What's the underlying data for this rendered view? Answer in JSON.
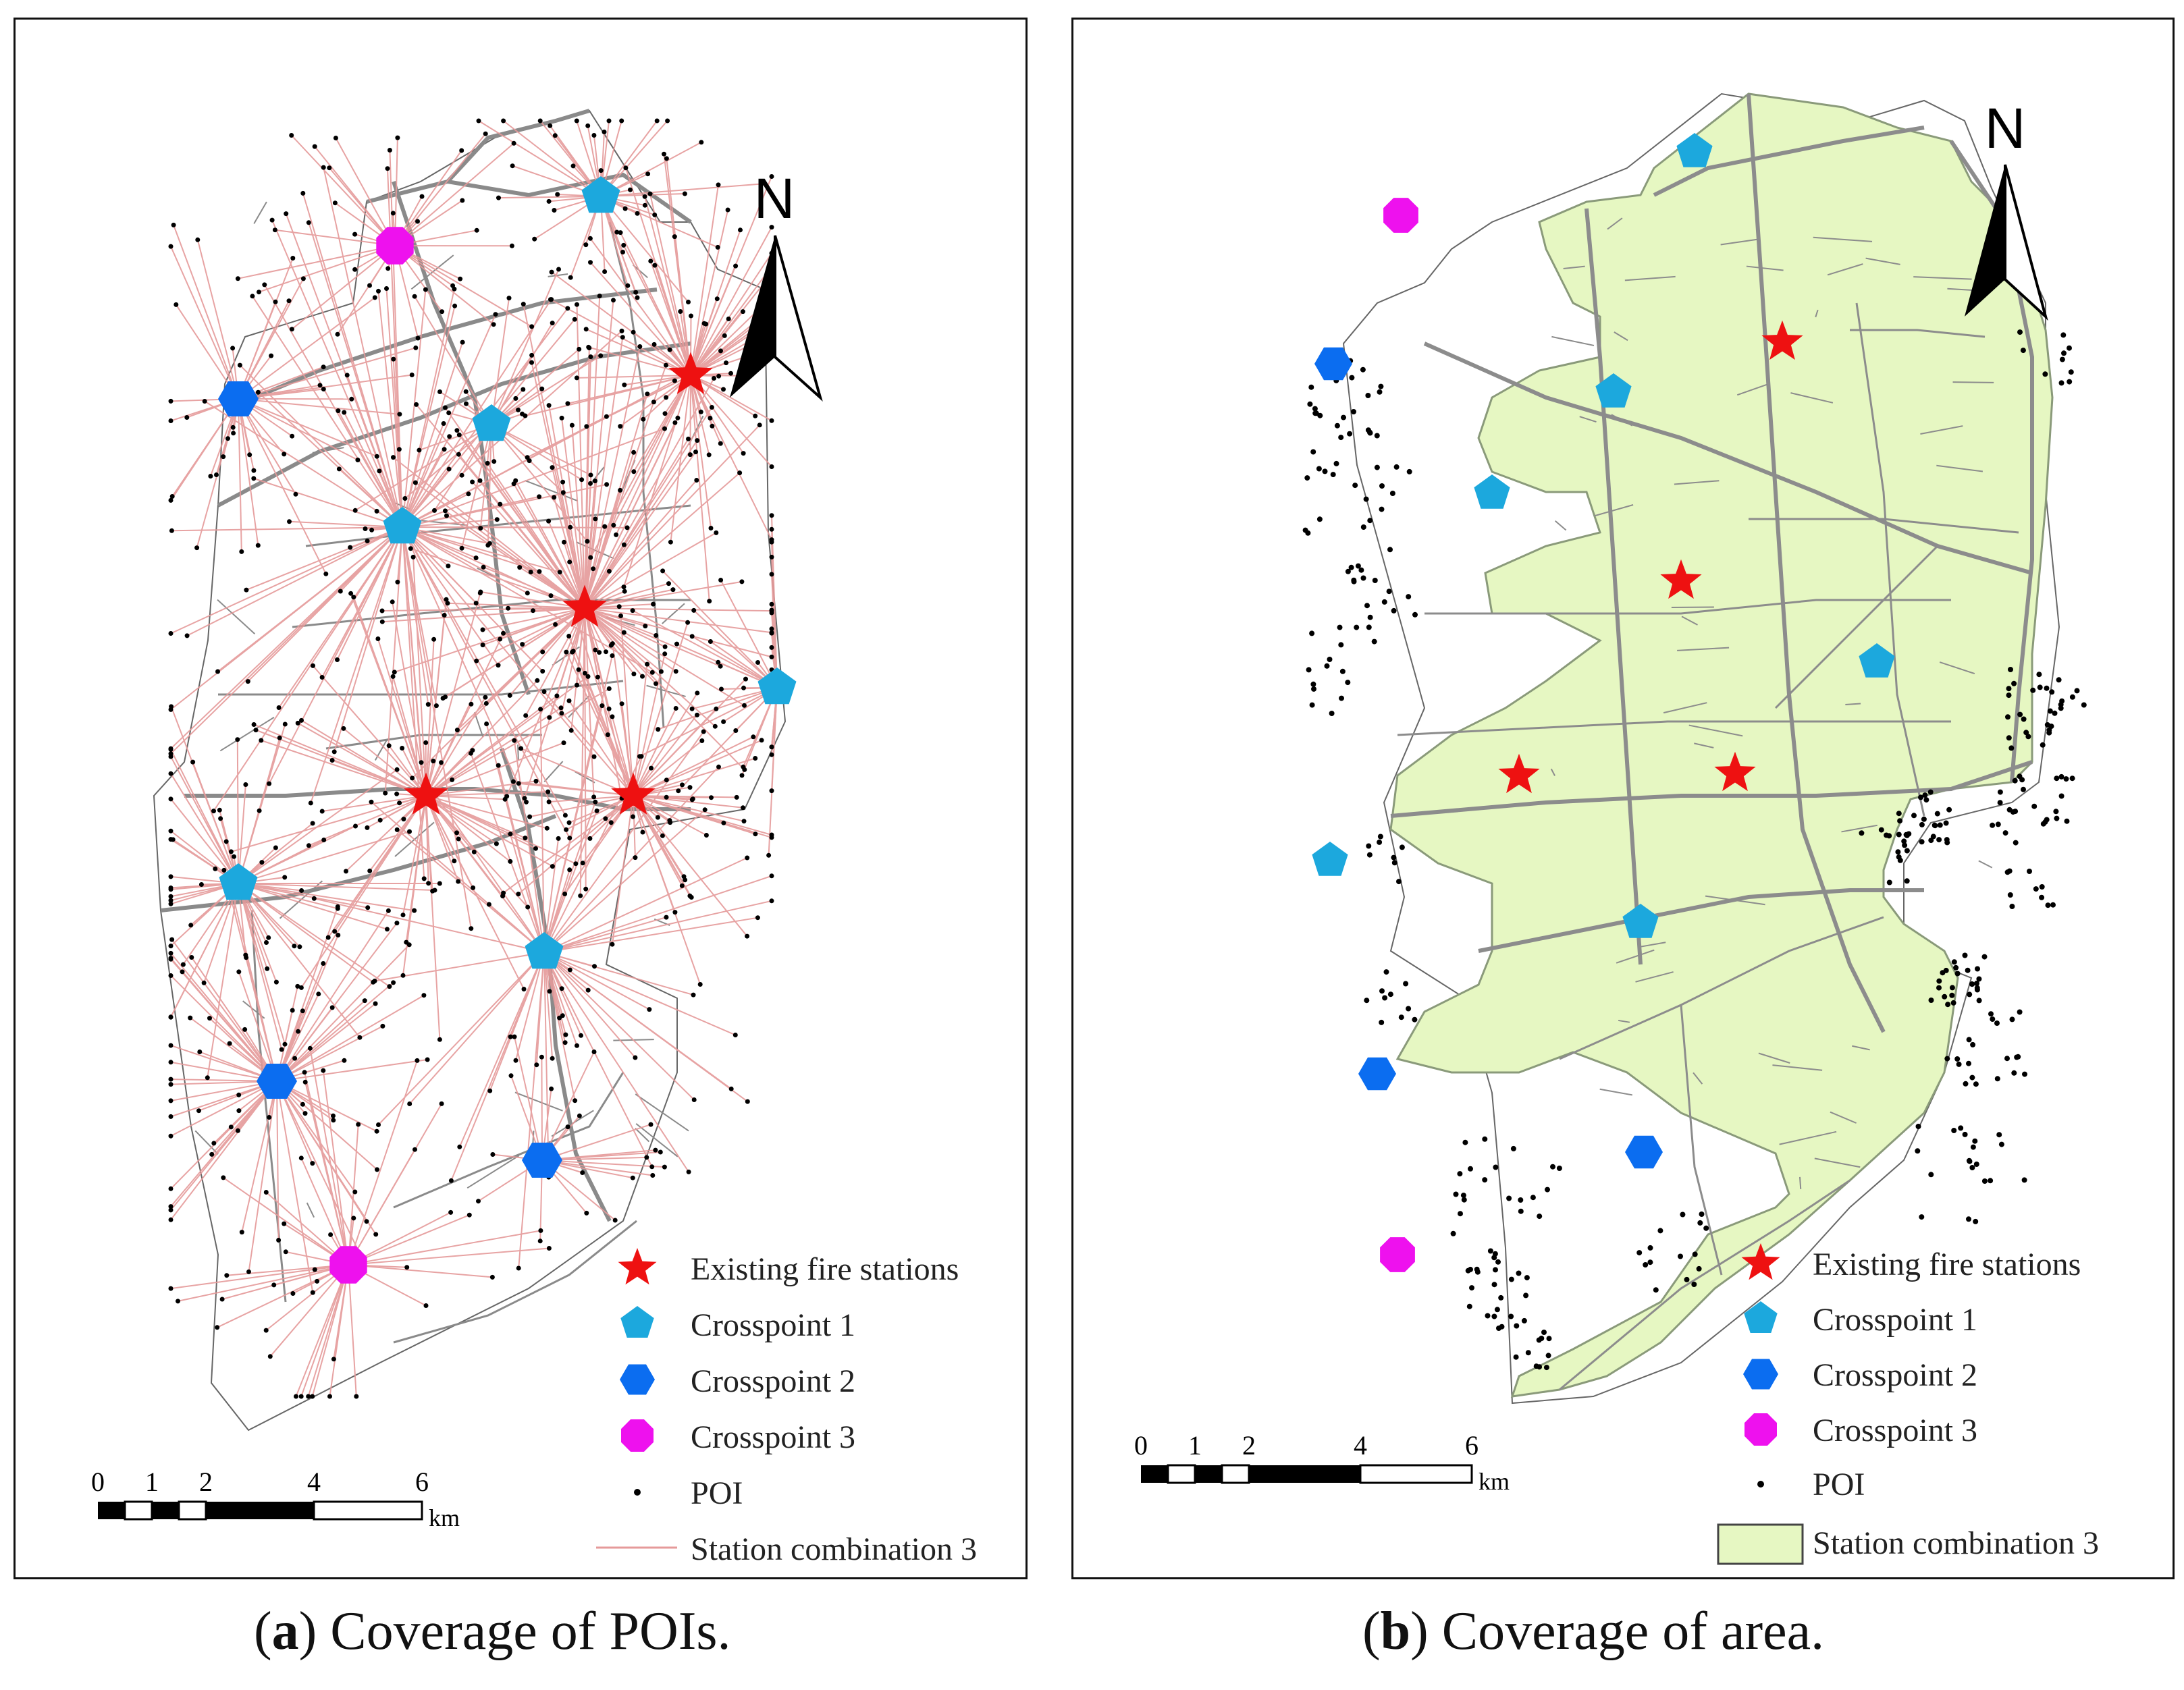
{
  "panel_a": {
    "north": "N",
    "legend": [
      {
        "id": "existing",
        "label": "Existing fire stations",
        "symbol": "star",
        "color": "#ee1111"
      },
      {
        "id": "cp1",
        "label": "Crosspoint 1",
        "symbol": "pentagon",
        "color": "#1ca8dd"
      },
      {
        "id": "cp2",
        "label": "Crosspoint 2",
        "symbol": "hexagon",
        "color": "#0b6df0"
      },
      {
        "id": "cp3",
        "label": "Crosspoint 3",
        "symbol": "octagon",
        "color": "#ee11ee"
      },
      {
        "id": "poi",
        "label": "POI",
        "symbol": "dot",
        "color": "#000000"
      },
      {
        "id": "combo",
        "label": "Station combination 3",
        "symbol": "line",
        "color": "#e8a0a0"
      }
    ],
    "scale": {
      "ticks": [
        "0",
        "1",
        "2",
        "4",
        "6"
      ],
      "unit": "km"
    }
  },
  "panel_b": {
    "north": "N",
    "legend": [
      {
        "id": "existing",
        "label": "Existing fire stations",
        "symbol": "star",
        "color": "#ee1111"
      },
      {
        "id": "cp1",
        "label": "Crosspoint 1",
        "symbol": "pentagon",
        "color": "#1ca8dd"
      },
      {
        "id": "cp2",
        "label": "Crosspoint 2",
        "symbol": "hexagon",
        "color": "#0b6df0"
      },
      {
        "id": "cp3",
        "label": "Crosspoint 3",
        "symbol": "octagon",
        "color": "#ee11ee"
      },
      {
        "id": "poi",
        "label": "POI",
        "symbol": "dot",
        "color": "#000000"
      },
      {
        "id": "combo",
        "label": "Station combination 3",
        "symbol": "area",
        "color": "#e6f7c2"
      }
    ],
    "scale": {
      "ticks": [
        "0",
        "1",
        "2",
        "4",
        "6"
      ],
      "unit": "km"
    }
  },
  "captions": {
    "a": {
      "letter": "a",
      "text": " Coverage of POIs."
    },
    "b": {
      "letter": "b",
      "text": " Coverage of area."
    }
  }
}
